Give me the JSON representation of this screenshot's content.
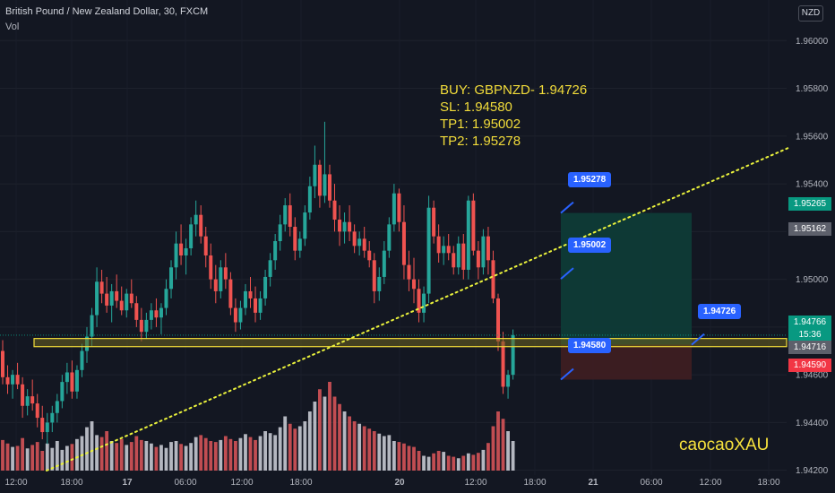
{
  "header": {
    "symbol_title": "British Pound / New Zealand Dollar, 30, FXCM",
    "volume_label": "Vol",
    "currency_badge": "NZD"
  },
  "trade_note": {
    "line1": "BUY: GBPNZD- 1.94726",
    "line2": "SL: 1.94580",
    "line3": "TP1: 1.95002",
    "line4": "TP2: 1.95278"
  },
  "watermark": "caocaoXAU",
  "price_labels": {
    "tp2": "1.95278",
    "tp1": "1.95002",
    "entry": "1.94726",
    "sl": "1.94580"
  },
  "axis_tags": {
    "tp_level": "1.95265",
    "last_close": "1.95162",
    "current": "1.94766",
    "countdown": "15:36",
    "entry_level": "1.94716",
    "stop_level": "1.94590"
  },
  "colors": {
    "up": "#26a69a",
    "down": "#ef5350",
    "profit_zone": "#0e3b37",
    "loss_zone": "#3d1e22",
    "support_band": "#f2dc3a",
    "trendline": "#eaf23c",
    "label_blue": "#2962ff"
  },
  "chart_data": {
    "type": "candlestick",
    "symbol": "British Pound / New Zealand Dollar",
    "timeframe": "30",
    "source": "FXCM",
    "y_ticks": [
      1.942,
      1.944,
      1.946,
      1.948,
      1.95,
      1.952,
      1.954,
      1.956,
      1.958,
      1.96
    ],
    "y_tick_labels": [
      "1.94200",
      "1.94400",
      "1.94600",
      "1.94800",
      "1.95000",
      "1.95200",
      "1.95400",
      "1.95600",
      "1.95800",
      "1.96000"
    ],
    "ylim": [
      1.9418,
      1.9614
    ],
    "x_tick_labels": [
      "12:00",
      "18:00",
      "17",
      "06:00",
      "12:00",
      "18:00",
      "20",
      "12:00",
      "18:00",
      "21",
      "06:00",
      "12:00",
      "18:00"
    ],
    "levels": {
      "entry": 1.94726,
      "stop_loss": 1.9458,
      "take_profit_1": 1.95002,
      "take_profit_2": 1.95278,
      "support_zone": [
        1.94718,
        1.94752
      ]
    },
    "series": [
      {
        "o": 1.947,
        "h": 1.94745,
        "l": 1.9456,
        "c": 1.9459
      },
      {
        "o": 1.9459,
        "h": 1.9464,
        "l": 1.9452,
        "c": 1.9456
      },
      {
        "o": 1.9456,
        "h": 1.9462,
        "l": 1.945,
        "c": 1.946
      },
      {
        "o": 1.946,
        "h": 1.9465,
        "l": 1.9454,
        "c": 1.9456
      },
      {
        "o": 1.9456,
        "h": 1.9459,
        "l": 1.9442,
        "c": 1.9447
      },
      {
        "o": 1.9447,
        "h": 1.9454,
        "l": 1.9443,
        "c": 1.9451
      },
      {
        "o": 1.9451,
        "h": 1.9458,
        "l": 1.9445,
        "c": 1.9448
      },
      {
        "o": 1.9448,
        "h": 1.9452,
        "l": 1.9438,
        "c": 1.9442
      },
      {
        "o": 1.9442,
        "h": 1.9447,
        "l": 1.9433,
        "c": 1.9436
      },
      {
        "o": 1.9436,
        "h": 1.9444,
        "l": 1.9431,
        "c": 1.944
      },
      {
        "o": 1.944,
        "h": 1.9447,
        "l": 1.9436,
        "c": 1.9444
      },
      {
        "o": 1.9444,
        "h": 1.9452,
        "l": 1.944,
        "c": 1.9449
      },
      {
        "o": 1.9449,
        "h": 1.946,
        "l": 1.9446,
        "c": 1.9457
      },
      {
        "o": 1.9457,
        "h": 1.9465,
        "l": 1.9452,
        "c": 1.9461
      },
      {
        "o": 1.9461,
        "h": 1.9466,
        "l": 1.945,
        "c": 1.9453
      },
      {
        "o": 1.9453,
        "h": 1.9464,
        "l": 1.945,
        "c": 1.9462
      },
      {
        "o": 1.9462,
        "h": 1.9473,
        "l": 1.9459,
        "c": 1.947
      },
      {
        "o": 1.947,
        "h": 1.948,
        "l": 1.9465,
        "c": 1.9476
      },
      {
        "o": 1.9476,
        "h": 1.9488,
        "l": 1.9472,
        "c": 1.9485
      },
      {
        "o": 1.9485,
        "h": 1.9505,
        "l": 1.948,
        "c": 1.9499
      },
      {
        "o": 1.9499,
        "h": 1.9504,
        "l": 1.949,
        "c": 1.9494
      },
      {
        "o": 1.9494,
        "h": 1.9501,
        "l": 1.9486,
        "c": 1.9489
      },
      {
        "o": 1.9489,
        "h": 1.9498,
        "l": 1.9482,
        "c": 1.9495
      },
      {
        "o": 1.9495,
        "h": 1.9502,
        "l": 1.9488,
        "c": 1.9491
      },
      {
        "o": 1.9491,
        "h": 1.9497,
        "l": 1.9485,
        "c": 1.9487
      },
      {
        "o": 1.9487,
        "h": 1.9496,
        "l": 1.9484,
        "c": 1.9494
      },
      {
        "o": 1.9494,
        "h": 1.95,
        "l": 1.9488,
        "c": 1.949
      },
      {
        "o": 1.949,
        "h": 1.9493,
        "l": 1.948,
        "c": 1.9483
      },
      {
        "o": 1.9483,
        "h": 1.9488,
        "l": 1.9474,
        "c": 1.9478
      },
      {
        "o": 1.9478,
        "h": 1.9486,
        "l": 1.9475,
        "c": 1.9483
      },
      {
        "o": 1.9483,
        "h": 1.949,
        "l": 1.9479,
        "c": 1.9487
      },
      {
        "o": 1.9487,
        "h": 1.9492,
        "l": 1.948,
        "c": 1.9484
      },
      {
        "o": 1.9484,
        "h": 1.949,
        "l": 1.9477,
        "c": 1.9488
      },
      {
        "o": 1.9488,
        "h": 1.95,
        "l": 1.9485,
        "c": 1.9496
      },
      {
        "o": 1.9496,
        "h": 1.9508,
        "l": 1.9492,
        "c": 1.9505
      },
      {
        "o": 1.9505,
        "h": 1.952,
        "l": 1.95,
        "c": 1.9515
      },
      {
        "o": 1.9515,
        "h": 1.9523,
        "l": 1.9506,
        "c": 1.951
      },
      {
        "o": 1.951,
        "h": 1.9517,
        "l": 1.9502,
        "c": 1.9513
      },
      {
        "o": 1.9513,
        "h": 1.9526,
        "l": 1.951,
        "c": 1.9523
      },
      {
        "o": 1.9523,
        "h": 1.9533,
        "l": 1.9518,
        "c": 1.9527
      },
      {
        "o": 1.9527,
        "h": 1.9531,
        "l": 1.9515,
        "c": 1.9518
      },
      {
        "o": 1.9518,
        "h": 1.9522,
        "l": 1.9505,
        "c": 1.951
      },
      {
        "o": 1.951,
        "h": 1.9515,
        "l": 1.9496,
        "c": 1.95
      },
      {
        "o": 1.95,
        "h": 1.9506,
        "l": 1.949,
        "c": 1.9495
      },
      {
        "o": 1.9495,
        "h": 1.9508,
        "l": 1.9492,
        "c": 1.9505
      },
      {
        "o": 1.9505,
        "h": 1.9511,
        "l": 1.9496,
        "c": 1.95
      },
      {
        "o": 1.95,
        "h": 1.9503,
        "l": 1.9485,
        "c": 1.9488
      },
      {
        "o": 1.9488,
        "h": 1.9492,
        "l": 1.9478,
        "c": 1.9482
      },
      {
        "o": 1.9482,
        "h": 1.9491,
        "l": 1.9479,
        "c": 1.9488
      },
      {
        "o": 1.9488,
        "h": 1.9498,
        "l": 1.9485,
        "c": 1.9495
      },
      {
        "o": 1.9495,
        "h": 1.9501,
        "l": 1.9488,
        "c": 1.9492
      },
      {
        "o": 1.9492,
        "h": 1.9497,
        "l": 1.9482,
        "c": 1.9486
      },
      {
        "o": 1.9486,
        "h": 1.9495,
        "l": 1.9483,
        "c": 1.9492
      },
      {
        "o": 1.9492,
        "h": 1.9504,
        "l": 1.9489,
        "c": 1.9501
      },
      {
        "o": 1.9501,
        "h": 1.9511,
        "l": 1.9497,
        "c": 1.9508
      },
      {
        "o": 1.9508,
        "h": 1.9519,
        "l": 1.9504,
        "c": 1.9516
      },
      {
        "o": 1.9516,
        "h": 1.9527,
        "l": 1.9512,
        "c": 1.9523
      },
      {
        "o": 1.9523,
        "h": 1.9534,
        "l": 1.952,
        "c": 1.9531
      },
      {
        "o": 1.9531,
        "h": 1.9536,
        "l": 1.9518,
        "c": 1.9522
      },
      {
        "o": 1.9522,
        "h": 1.9526,
        "l": 1.9508,
        "c": 1.9512
      },
      {
        "o": 1.9512,
        "h": 1.952,
        "l": 1.9509,
        "c": 1.9517
      },
      {
        "o": 1.9517,
        "h": 1.9531,
        "l": 1.9514,
        "c": 1.9528
      },
      {
        "o": 1.9528,
        "h": 1.9543,
        "l": 1.9525,
        "c": 1.9539
      },
      {
        "o": 1.9539,
        "h": 1.9556,
        "l": 1.9534,
        "c": 1.9548
      },
      {
        "o": 1.9548,
        "h": 1.955,
        "l": 1.953,
        "c": 1.9535
      },
      {
        "o": 1.9535,
        "h": 1.9566,
        "l": 1.9532,
        "c": 1.9544
      },
      {
        "o": 1.9544,
        "h": 1.9548,
        "l": 1.953,
        "c": 1.9533
      },
      {
        "o": 1.9533,
        "h": 1.954,
        "l": 1.952,
        "c": 1.9525
      },
      {
        "o": 1.9525,
        "h": 1.9531,
        "l": 1.9514,
        "c": 1.952
      },
      {
        "o": 1.952,
        "h": 1.9528,
        "l": 1.9515,
        "c": 1.9524
      },
      {
        "o": 1.9524,
        "h": 1.9531,
        "l": 1.9516,
        "c": 1.952
      },
      {
        "o": 1.952,
        "h": 1.9523,
        "l": 1.9511,
        "c": 1.9514
      },
      {
        "o": 1.9514,
        "h": 1.952,
        "l": 1.951,
        "c": 1.9517
      },
      {
        "o": 1.9517,
        "h": 1.9522,
        "l": 1.9509,
        "c": 1.9512
      },
      {
        "o": 1.9512,
        "h": 1.9516,
        "l": 1.9505,
        "c": 1.9508
      },
      {
        "o": 1.9508,
        "h": 1.9511,
        "l": 1.949,
        "c": 1.9495
      },
      {
        "o": 1.9495,
        "h": 1.9505,
        "l": 1.9491,
        "c": 1.9501
      },
      {
        "o": 1.9501,
        "h": 1.9516,
        "l": 1.9498,
        "c": 1.9512
      },
      {
        "o": 1.9512,
        "h": 1.9526,
        "l": 1.9509,
        "c": 1.9523
      },
      {
        "o": 1.9523,
        "h": 1.954,
        "l": 1.952,
        "c": 1.9536
      },
      {
        "o": 1.9536,
        "h": 1.9538,
        "l": 1.952,
        "c": 1.9524
      },
      {
        "o": 1.9524,
        "h": 1.9531,
        "l": 1.95,
        "c": 1.9506
      },
      {
        "o": 1.9506,
        "h": 1.9512,
        "l": 1.9495,
        "c": 1.95
      },
      {
        "o": 1.95,
        "h": 1.9509,
        "l": 1.949,
        "c": 1.9496
      },
      {
        "o": 1.9496,
        "h": 1.95,
        "l": 1.9482,
        "c": 1.9486
      },
      {
        "o": 1.9486,
        "h": 1.9497,
        "l": 1.9482,
        "c": 1.9494
      },
      {
        "o": 1.9494,
        "h": 1.9535,
        "l": 1.949,
        "c": 1.953
      },
      {
        "o": 1.953,
        "h": 1.9533,
        "l": 1.9515,
        "c": 1.9518
      },
      {
        "o": 1.9518,
        "h": 1.9523,
        "l": 1.9507,
        "c": 1.9511
      },
      {
        "o": 1.9511,
        "h": 1.9518,
        "l": 1.9506,
        "c": 1.9514
      },
      {
        "o": 1.9514,
        "h": 1.9519,
        "l": 1.9508,
        "c": 1.9511
      },
      {
        "o": 1.9511,
        "h": 1.9514,
        "l": 1.9502,
        "c": 1.9505
      },
      {
        "o": 1.9505,
        "h": 1.9518,
        "l": 1.9502,
        "c": 1.9515
      },
      {
        "o": 1.9515,
        "h": 1.9519,
        "l": 1.95,
        "c": 1.9504
      },
      {
        "o": 1.9504,
        "h": 1.9535,
        "l": 1.95,
        "c": 1.9533
      },
      {
        "o": 1.9533,
        "h": 1.9536,
        "l": 1.951,
        "c": 1.9512
      },
      {
        "o": 1.9512,
        "h": 1.9516,
        "l": 1.95,
        "c": 1.9505
      },
      {
        "o": 1.9505,
        "h": 1.9521,
        "l": 1.9502,
        "c": 1.9518
      },
      {
        "o": 1.9518,
        "h": 1.9522,
        "l": 1.9502,
        "c": 1.9508
      },
      {
        "o": 1.9508,
        "h": 1.9512,
        "l": 1.949,
        "c": 1.9492
      },
      {
        "o": 1.9492,
        "h": 1.9494,
        "l": 1.947,
        "c": 1.9474
      },
      {
        "o": 1.9474,
        "h": 1.9478,
        "l": 1.9452,
        "c": 1.9455
      },
      {
        "o": 1.9455,
        "h": 1.9462,
        "l": 1.945,
        "c": 1.946
      },
      {
        "o": 1.946,
        "h": 1.9479,
        "l": 1.9458,
        "c": 1.94766
      }
    ],
    "volume": [
      62,
      55,
      48,
      50,
      66,
      45,
      52,
      58,
      40,
      55,
      46,
      60,
      42,
      50,
      54,
      64,
      70,
      88,
      100,
      72,
      68,
      80,
      60,
      56,
      64,
      52,
      58,
      70,
      62,
      60,
      55,
      48,
      52,
      46,
      58,
      60,
      54,
      50,
      56,
      68,
      72,
      66,
      60,
      58,
      62,
      70,
      64,
      60,
      66,
      74,
      68,
      62,
      70,
      80,
      76,
      72,
      88,
      110,
      95,
      85,
      90,
      100,
      120,
      140,
      165,
      150,
      180,
      150,
      135,
      120,
      110,
      100,
      95,
      90,
      85,
      80,
      75,
      70,
      72,
      60,
      58,
      55,
      50,
      48,
      40,
      30,
      28,
      35,
      40,
      38,
      30,
      28,
      25,
      30,
      35,
      32,
      36,
      42,
      56,
      90,
      120,
      105,
      80,
      60
    ]
  }
}
